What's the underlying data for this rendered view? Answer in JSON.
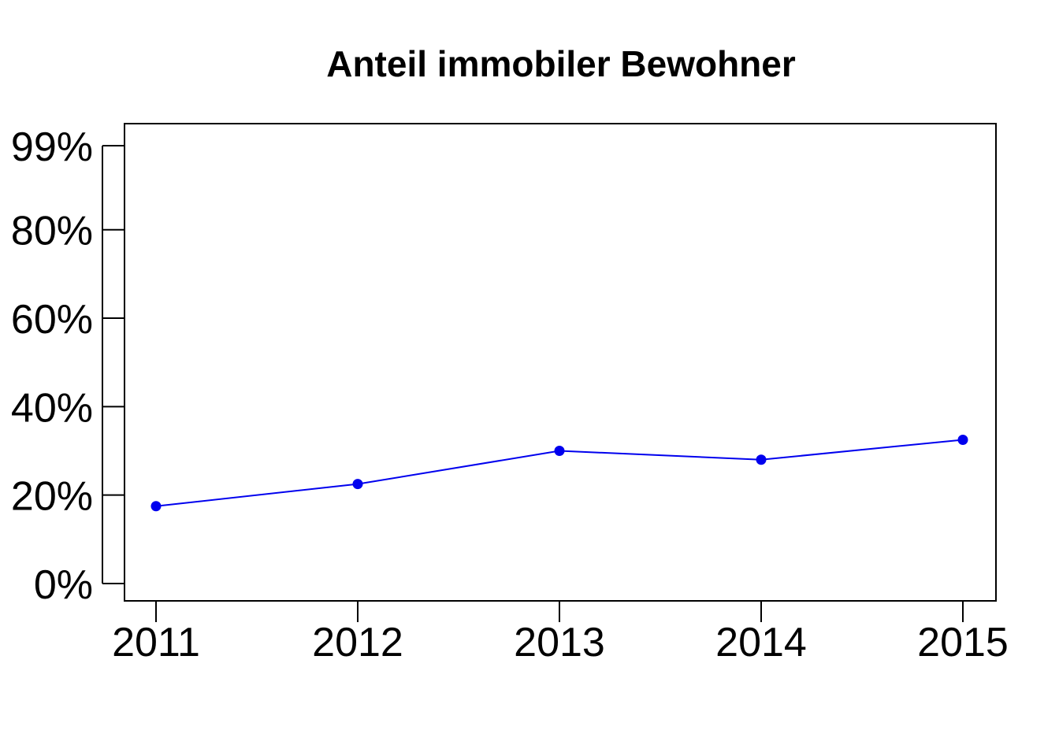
{
  "chart_data": {
    "type": "line",
    "title": "Anteil immobiler Bewohner",
    "xlabel": "",
    "ylabel": "",
    "x": [
      "2011",
      "2012",
      "2013",
      "2014",
      "2015"
    ],
    "series": [
      {
        "values": [
          17.5,
          22.5,
          30.0,
          28.0,
          32.5
        ]
      }
    ],
    "yticks": [
      0,
      20,
      40,
      60,
      80,
      99
    ],
    "ytick_labels": [
      "0%",
      "20%",
      "40%",
      "60%",
      "80%",
      "99%"
    ],
    "ylim": [
      -4,
      104
    ],
    "grid": false,
    "legend": "none",
    "colors": {
      "line": "#0000ee",
      "axes": "#000000"
    }
  }
}
